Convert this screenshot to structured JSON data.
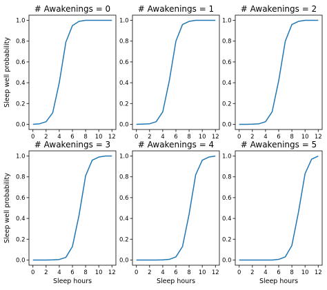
{
  "chart_data": {
    "type": "line",
    "x": [
      0,
      1,
      2,
      3,
      4,
      5,
      6,
      7,
      8,
      9,
      10,
      11,
      12
    ],
    "xlabel": "Sleep hours",
    "ylabel": "Sleep well probability",
    "xticks": [
      "0",
      "2",
      "4",
      "6",
      "8",
      "10",
      "12"
    ],
    "yticks": [
      "0.0",
      "0.2",
      "0.4",
      "0.6",
      "0.8",
      "1.0"
    ],
    "xlim": [
      -0.6,
      12.6
    ],
    "ylim": [
      -0.05,
      1.05
    ],
    "grid": false,
    "panels": [
      {
        "title": "# Awakenings = 0",
        "series": [
          {
            "values": [
              0.0,
              0.005,
              0.025,
              0.11,
              0.4,
              0.79,
              0.95,
              0.99,
              1.0,
              1.0,
              1.0,
              1.0,
              1.0
            ]
          }
        ]
      },
      {
        "title": "# Awakenings = 1",
        "series": [
          {
            "values": [
              0.0,
              0.002,
              0.005,
              0.025,
              0.12,
              0.42,
              0.8,
              0.96,
              0.99,
              1.0,
              1.0,
              1.0,
              1.0
            ]
          }
        ]
      },
      {
        "title": "# Awakenings = 2",
        "series": [
          {
            "values": [
              0.0,
              0.0,
              0.001,
              0.005,
              0.025,
              0.12,
              0.42,
              0.8,
              0.96,
              0.99,
              1.0,
              1.0,
              1.0
            ]
          }
        ]
      },
      {
        "title": "# Awakenings = 3",
        "series": [
          {
            "values": [
              0.0,
              0.0,
              0.0,
              0.001,
              0.005,
              0.025,
              0.13,
              0.43,
              0.81,
              0.96,
              0.99,
              1.0,
              1.0
            ]
          }
        ]
      },
      {
        "title": "# Awakenings = 4",
        "series": [
          {
            "values": [
              0.0,
              0.0,
              0.0,
              0.0,
              0.001,
              0.006,
              0.03,
              0.13,
              0.44,
              0.82,
              0.96,
              0.99,
              1.0
            ]
          }
        ]
      },
      {
        "title": "# Awakenings = 5",
        "series": [
          {
            "values": [
              0.0,
              0.0,
              0.0,
              0.0,
              0.0,
              0.0,
              0.006,
              0.03,
              0.14,
              0.46,
              0.83,
              0.97,
              1.0
            ]
          }
        ]
      }
    ]
  }
}
